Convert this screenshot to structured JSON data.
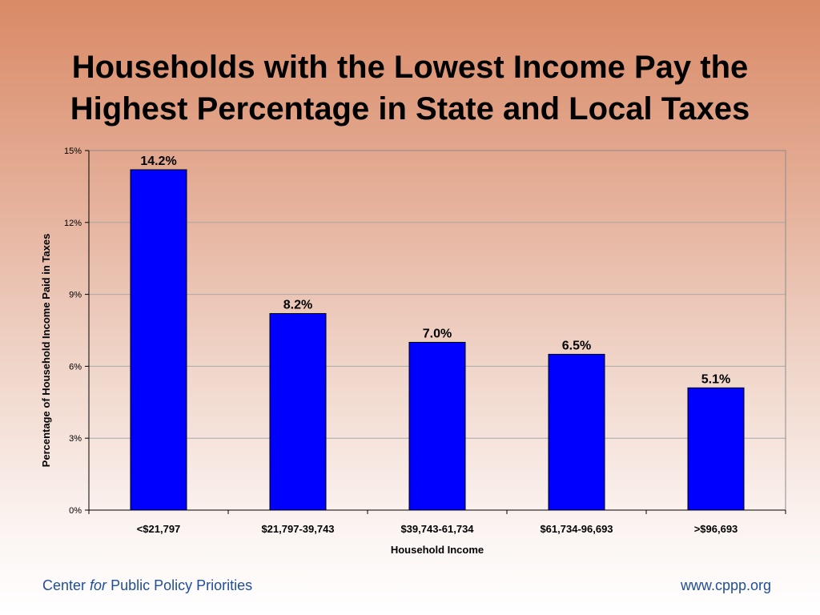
{
  "slide": {
    "title_line1": "Households with the Lowest Income Pay the",
    "title_line2": "Highest Percentage in State and Local Taxes"
  },
  "footer": {
    "org_prefix": "Center",
    "org_italic": "for",
    "org_suffix": "Public Policy Priorities",
    "url": "www.cppp.org",
    "color": "#1f4e9c"
  },
  "chart_data": {
    "type": "bar",
    "title": "",
    "xlabel": "Household Income",
    "ylabel": "Percentage of Household Income Paid in Taxes",
    "categories": [
      "<$21,797",
      "$21,797-39,743",
      "$39,743-61,734",
      "$61,734-96,693",
      ">$96,693"
    ],
    "values": [
      14.2,
      8.2,
      7.0,
      6.5,
      5.1
    ],
    "value_labels": [
      "14.2%",
      "8.2%",
      "7.0%",
      "6.5%",
      "5.1%"
    ],
    "ylim": [
      0,
      15
    ],
    "yticks": [
      0,
      3,
      6,
      9,
      12,
      15
    ],
    "ytick_labels": [
      "0%",
      "3%",
      "6%",
      "9%",
      "12%",
      "15%"
    ],
    "grid": true,
    "bar_color": "#0000ff"
  }
}
